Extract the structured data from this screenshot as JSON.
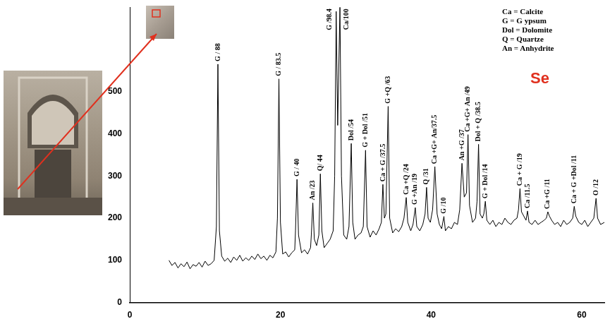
{
  "chart_data": {
    "type": "line",
    "title": "Se",
    "key": [
      "Ca = Calcite",
      "G = G ypsum",
      "Dol = Dolomite",
      "Q = Quartze",
      "An = Anhydrite"
    ],
    "x": [
      5.2,
      5.6,
      6.0,
      6.4,
      6.8,
      7.2,
      7.6,
      8.0,
      8.4,
      8.8,
      9.2,
      9.6,
      10.0,
      10.4,
      10.8,
      11.2,
      11.5,
      11.7,
      11.9,
      12.2,
      12.6,
      13.0,
      13.4,
      13.8,
      14.2,
      14.6,
      15.0,
      15.4,
      15.8,
      16.2,
      16.6,
      17.0,
      17.4,
      17.8,
      18.2,
      18.6,
      19.0,
      19.4,
      19.6,
      19.8,
      20.0,
      20.3,
      20.7,
      21.1,
      21.5,
      21.9,
      22.0,
      22.2,
      22.4,
      22.8,
      23.2,
      23.6,
      24.0,
      24.1,
      24.3,
      24.5,
      24.8,
      25.1,
      25.3,
      25.5,
      25.8,
      26.2,
      26.6,
      27.0,
      27.2,
      27.4,
      27.6,
      27.9,
      28.1,
      28.4,
      28.8,
      29.1,
      29.4,
      29.6,
      29.9,
      30.3,
      30.7,
      31.0,
      31.3,
      31.5,
      31.9,
      32.3,
      32.7,
      33.1,
      33.4,
      33.6,
      33.8,
      34.0,
      34.3,
      34.5,
      34.9,
      35.3,
      35.7,
      36.1,
      36.4,
      36.7,
      36.9,
      37.3,
      37.6,
      37.9,
      38.1,
      38.5,
      38.9,
      39.2,
      39.4,
      39.6,
      39.9,
      40.2,
      40.5,
      40.8,
      41.1,
      41.4,
      41.7,
      41.9,
      42.3,
      42.7,
      43.1,
      43.5,
      43.8,
      44.1,
      44.4,
      44.7,
      44.9,
      45.1,
      45.5,
      45.9,
      46.1,
      46.3,
      46.5,
      46.8,
      47.0,
      47.2,
      47.4,
      47.8,
      48.2,
      48.6,
      49.0,
      49.4,
      49.8,
      50.2,
      50.6,
      51.0,
      51.4,
      51.6,
      51.8,
      52.0,
      52.3,
      52.6,
      52.8,
      53.0,
      53.4,
      53.8,
      54.2,
      54.6,
      55.0,
      55.3,
      55.5,
      55.7,
      56.0,
      56.4,
      56.8,
      57.2,
      57.6,
      58.0,
      58.4,
      58.8,
      59.0,
      59.2,
      59.6,
      60.0,
      60.4,
      60.8,
      61.2,
      61.6,
      61.9,
      62.1,
      62.5,
      63.0
    ],
    "values": [
      100,
      88,
      95,
      82,
      92,
      85,
      96,
      80,
      90,
      86,
      95,
      84,
      98,
      88,
      92,
      100,
      180,
      565,
      170,
      110,
      98,
      105,
      95,
      108,
      100,
      112,
      98,
      106,
      100,
      110,
      102,
      115,
      104,
      110,
      100,
      112,
      106,
      120,
      200,
      530,
      190,
      115,
      120,
      108,
      118,
      125,
      170,
      292,
      160,
      118,
      125,
      115,
      130,
      160,
      236,
      150,
      135,
      160,
      305,
      170,
      130,
      140,
      150,
      170,
      300,
      690,
      420,
      700,
      300,
      160,
      150,
      180,
      377,
      190,
      150,
      160,
      165,
      180,
      361,
      180,
      155,
      170,
      160,
      175,
      190,
      280,
      200,
      210,
      465,
      200,
      165,
      175,
      168,
      180,
      200,
      249,
      190,
      170,
      185,
      225,
      180,
      170,
      185,
      210,
      273,
      200,
      190,
      220,
      322,
      210,
      185,
      175,
      204,
      170,
      180,
      175,
      190,
      185,
      220,
      330,
      250,
      260,
      398,
      230,
      190,
      200,
      240,
      375,
      210,
      200,
      210,
      240,
      195,
      185,
      195,
      180,
      190,
      185,
      200,
      190,
      185,
      195,
      200,
      220,
      270,
      215,
      205,
      195,
      217,
      190,
      185,
      195,
      185,
      190,
      195,
      200,
      215,
      205,
      195,
      185,
      190,
      180,
      195,
      185,
      190,
      200,
      228,
      205,
      190,
      185,
      195,
      180,
      190,
      200,
      247,
      200,
      185,
      190
    ],
    "color": "#000000",
    "xlim": [
      0,
      63
    ],
    "xticks": [
      0,
      20,
      40,
      60
    ],
    "ylim": [
      0,
      700
    ],
    "yticks": [
      0,
      100,
      200,
      300,
      400,
      500
    ],
    "grid": false,
    "annotations": [
      {
        "x": 11.7,
        "y": 565,
        "text": "G / 88"
      },
      {
        "x": 19.8,
        "y": 530,
        "text": "G / 83.5"
      },
      {
        "x": 22.2,
        "y": 292,
        "text": "G / 40"
      },
      {
        "x": 24.3,
        "y": 236,
        "text": "An /23"
      },
      {
        "x": 25.3,
        "y": 305,
        "text": "Q/ 44"
      },
      {
        "x": 27.4,
        "y": 690,
        "text": "G /98.4"
      },
      {
        "x": 27.9,
        "y": 700,
        "text": "Ca/100"
      },
      {
        "x": 29.4,
        "y": 377,
        "text": "Dol /54"
      },
      {
        "x": 31.3,
        "y": 361,
        "text": "G + Dol /51"
      },
      {
        "x": 33.6,
        "y": 280,
        "text": "Ca + G /37.5"
      },
      {
        "x": 34.3,
        "y": 465,
        "text": "G +Q /63"
      },
      {
        "x": 36.7,
        "y": 249,
        "text": "Ca +Q /24"
      },
      {
        "x": 37.9,
        "y": 225,
        "text": "G +An /19"
      },
      {
        "x": 39.4,
        "y": 273,
        "text": "Q /31"
      },
      {
        "x": 40.5,
        "y": 322,
        "text": "Ca +G+ An/37.5"
      },
      {
        "x": 41.7,
        "y": 204,
        "text": "G /10"
      },
      {
        "x": 44.1,
        "y": 330,
        "text": "An +G /37"
      },
      {
        "x": 44.9,
        "y": 398,
        "text": "Ca +G+ An /49"
      },
      {
        "x": 46.3,
        "y": 375,
        "text": "Dol + Q /38.5"
      },
      {
        "x": 47.2,
        "y": 240,
        "text": "G + Dol /14"
      },
      {
        "x": 51.8,
        "y": 270,
        "text": "Ca + G /19"
      },
      {
        "x": 52.8,
        "y": 217,
        "text": "Ca /11.5"
      },
      {
        "x": 55.5,
        "y": 215,
        "text": "Ca +G /11"
      },
      {
        "x": 59.0,
        "y": 228,
        "text": "Ca + G +Dol /11"
      },
      {
        "x": 61.9,
        "y": 247,
        "text": "O /12"
      }
    ]
  }
}
